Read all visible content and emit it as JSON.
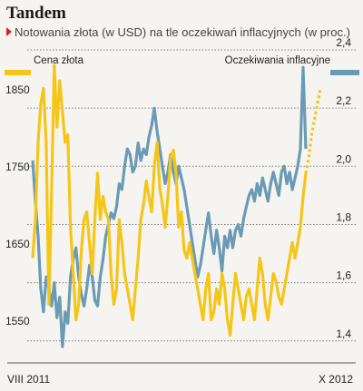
{
  "chart_data": {
    "type": "line",
    "title": "Tandem",
    "subtitle": "Notowania złota (w USD) na tle oczekiwań inflacyjnych (w proc.)",
    "x_start_label": "VIII 2011",
    "x_end_label": "X 2012",
    "left_axis": {
      "label": "Cena złota",
      "ticks": [
        "1550",
        "1650",
        "1750",
        "1850"
      ],
      "ylim": [
        1510,
        1910
      ]
    },
    "right_axis": {
      "label": "Oczekiwania inflacyjne",
      "ticks": [
        "1,4",
        "1,6",
        "1,8",
        "2,0",
        "2,2",
        "2,4"
      ],
      "ylim": [
        1.34,
        2.4
      ]
    },
    "grid": true,
    "series": [
      {
        "name": "Cena złota",
        "axis": "left",
        "color": "#f5c518",
        "values": [
          1640,
          1690,
          1790,
          1840,
          1860,
          1790,
          1580,
          1730,
          1890,
          1810,
          1870,
          1830,
          1790,
          1800,
          1680,
          1620,
          1560,
          1580,
          1650,
          1690,
          1700,
          1660,
          1620,
          1690,
          1750,
          1690,
          1720,
          1700,
          1690,
          1620,
          1580,
          1600,
          1690,
          1660,
          1620,
          1600,
          1580,
          1560,
          1600,
          1640,
          1690,
          1710,
          1740,
          1720,
          1700,
          1760,
          1790,
          1730,
          1710,
          1680,
          1720,
          1770,
          1780,
          1750,
          1680,
          1700,
          1650,
          1640,
          1660,
          1640,
          1620,
          1600,
          1580,
          1560,
          1600,
          1620,
          1560,
          1570,
          1600,
          1580,
          1620,
          1600,
          1560,
          1540,
          1580,
          1620,
          1600,
          1580,
          1560,
          1590,
          1600,
          1580,
          1560,
          1600,
          1640,
          1620,
          1580,
          1560,
          1590,
          1620,
          1610,
          1590,
          1580,
          1600,
          1620,
          1640,
          1660,
          1640,
          1660,
          1680,
          1720,
          1750
        ],
        "projection": [
          1770,
          1800,
          1820,
          1840,
          1860
        ]
      },
      {
        "name": "Oczekiwania inflacyjne",
        "axis": "right",
        "color": "#6a9bb5",
        "values": [
          2.02,
          1.88,
          1.76,
          1.58,
          1.5,
          1.62,
          1.58,
          1.52,
          1.6,
          1.48,
          1.55,
          1.38,
          1.5,
          1.46,
          1.62,
          1.68,
          1.72,
          1.62,
          1.56,
          1.52,
          1.58,
          1.66,
          1.62,
          1.54,
          1.52,
          1.62,
          1.68,
          1.76,
          1.8,
          1.84,
          1.82,
          1.86,
          1.94,
          1.92,
          2.0,
          2.06,
          2.04,
          1.98,
          2.0,
          2.08,
          2.02,
          2.06,
          2.04,
          2.1,
          2.14,
          2.2,
          2.12,
          2.06,
          2.0,
          1.94,
          1.98,
          2.04,
          1.98,
          1.94,
          2.0,
          1.96,
          1.92,
          1.86,
          1.8,
          1.74,
          1.68,
          1.62,
          1.66,
          1.72,
          1.78,
          1.84,
          1.76,
          1.7,
          1.78,
          1.72,
          1.64,
          1.76,
          1.72,
          1.78,
          1.72,
          1.78,
          1.8,
          1.76,
          1.82,
          1.86,
          1.9,
          1.92,
          1.88,
          1.94,
          1.9,
          1.96,
          1.92,
          1.88,
          1.94,
          1.98,
          1.94,
          1.9,
          1.98,
          2.0,
          1.94,
          1.98,
          1.92,
          1.96,
          2.0,
          2.06,
          2.34,
          2.06
        ]
      }
    ]
  }
}
